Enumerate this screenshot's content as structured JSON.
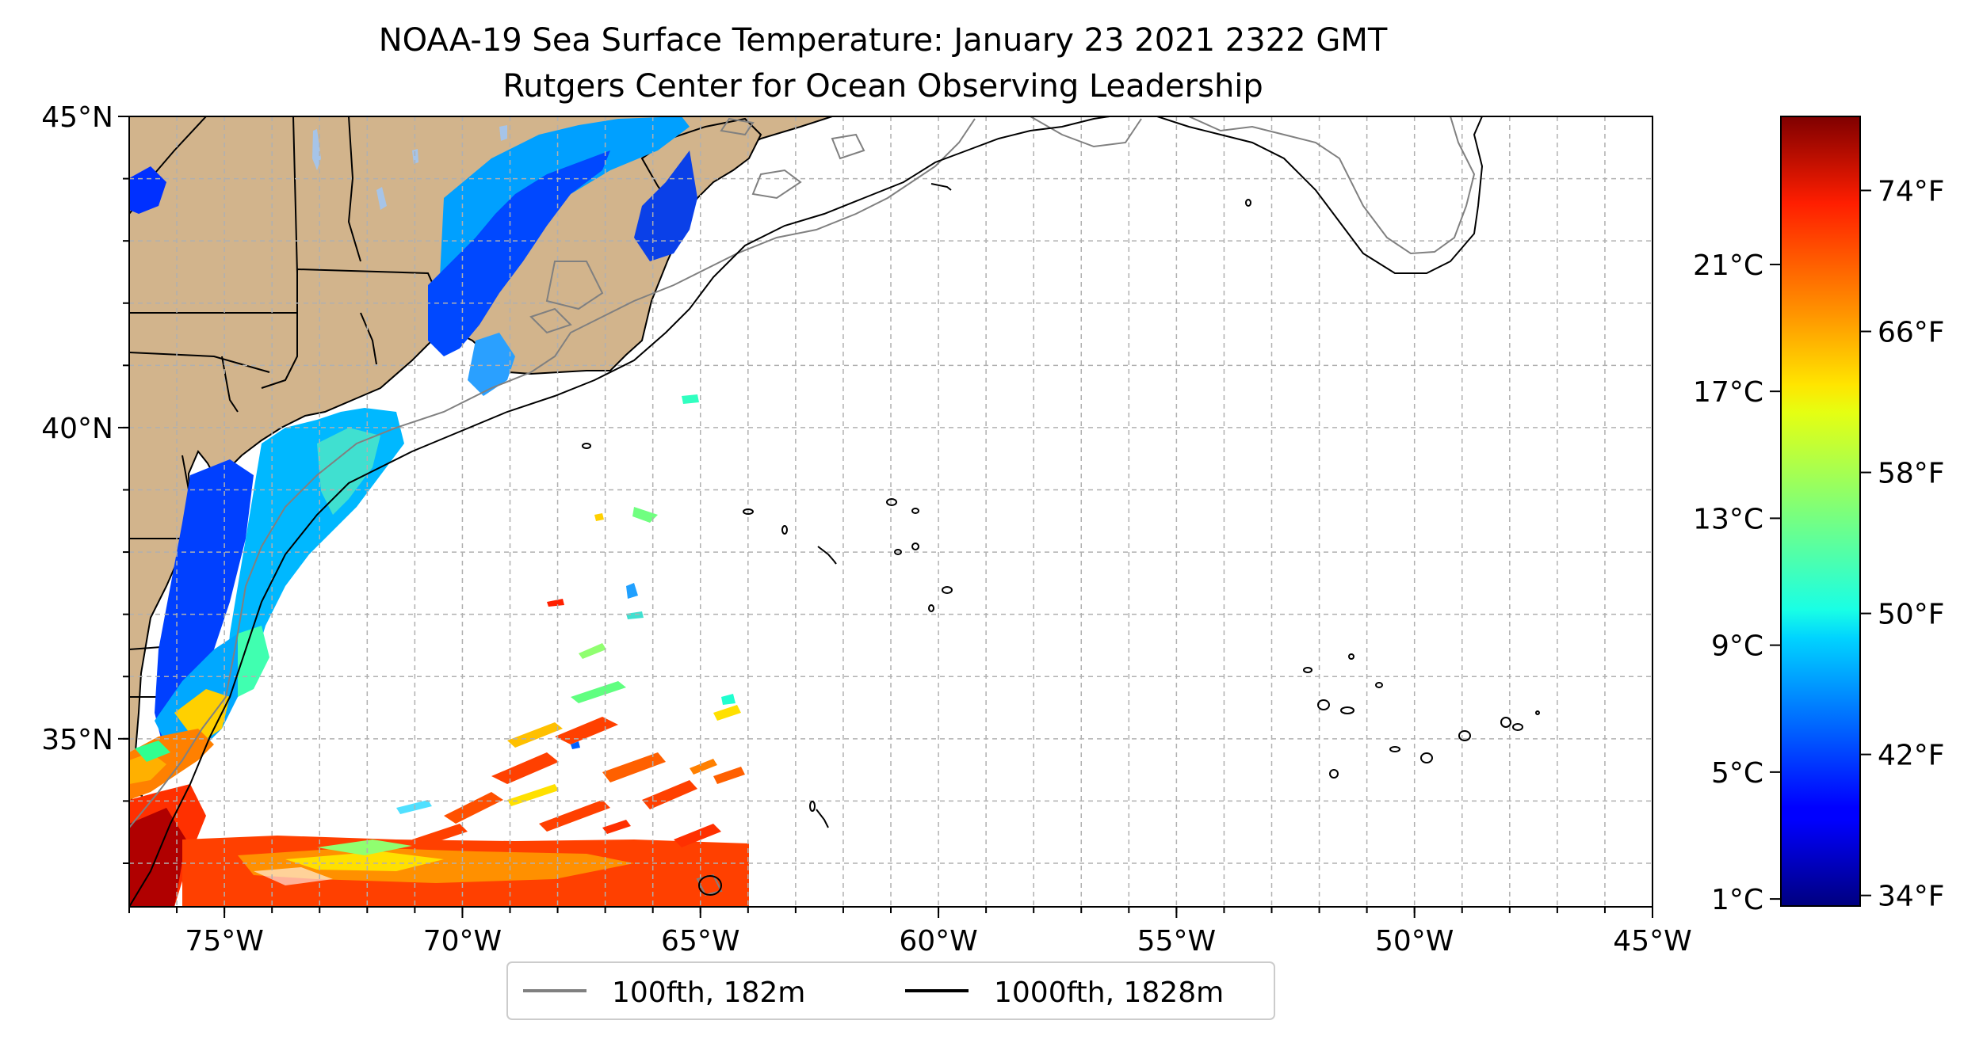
{
  "title": {
    "line1": "NOAA-19 Sea Surface Temperature: January 23 2021 2322 GMT",
    "line2": "Rutgers Center for Ocean Observing Leadership"
  },
  "map": {
    "lon_range": [
      -77,
      -45
    ],
    "lat_range": [
      32.3,
      45
    ],
    "grid": true,
    "land_color": "#d2b48c",
    "lakes_color": "#a6c4e8",
    "x_ticks": [
      {
        "value": -75,
        "label": "75°W"
      },
      {
        "value": -70,
        "label": "70°W"
      },
      {
        "value": -65,
        "label": "65°W"
      },
      {
        "value": -60,
        "label": "60°W"
      },
      {
        "value": -55,
        "label": "55°W"
      },
      {
        "value": -50,
        "label": "50°W"
      },
      {
        "value": -45,
        "label": "45°W"
      }
    ],
    "y_ticks": [
      {
        "value": 45,
        "label": "45°N"
      },
      {
        "value": 40,
        "label": "40°N"
      },
      {
        "value": 35,
        "label": "35°N"
      }
    ]
  },
  "legend": {
    "placement": "bottom-center",
    "items": [
      {
        "label": "100fth, 182m",
        "color": "#808080"
      },
      {
        "label": "1000fth, 1828m",
        "color": "#000000"
      }
    ]
  },
  "colorbar": {
    "colormap": "jet",
    "range_f": [
      33.4,
      78.2
    ],
    "fahrenheit_ticks": [
      {
        "value": 34,
        "label": "34°F"
      },
      {
        "value": 42,
        "label": "42°F"
      },
      {
        "value": 50,
        "label": "50°F"
      },
      {
        "value": 58,
        "label": "58°F"
      },
      {
        "value": 66,
        "label": "66°F"
      },
      {
        "value": 74,
        "label": "74°F"
      }
    ],
    "celsius_ticks": [
      {
        "value": 1,
        "label": "1°C"
      },
      {
        "value": 5,
        "label": "5°C"
      },
      {
        "value": 9,
        "label": "9°C"
      },
      {
        "value": 13,
        "label": "13°C"
      },
      {
        "value": 17,
        "label": "17°C"
      },
      {
        "value": 21,
        "label": "21°C"
      }
    ]
  }
}
